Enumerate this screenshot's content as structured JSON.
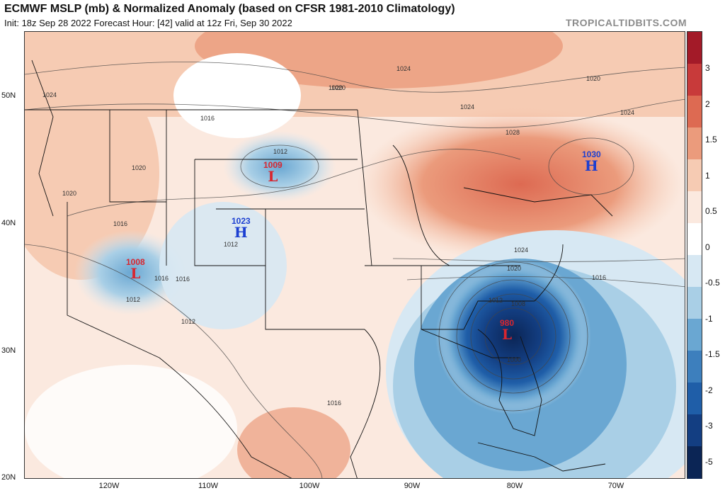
{
  "header": {
    "title": "ECMWF MSLP (mb) & Normalized Anomaly (based on CFSR 1981-2010 Climatology)",
    "subtitle": "Init: 18z Sep 28 2022   Forecast Hour: [42]   valid at 12z Fri, Sep 30 2022",
    "brand": "TROPICALTIDBITS.COM"
  },
  "map": {
    "lat_labels": [
      "50N",
      "40N",
      "30N",
      "20N"
    ],
    "lon_labels": [
      "120W",
      "110W",
      "100W",
      "90W",
      "80W",
      "70W"
    ],
    "colorbar_labels": [
      "3",
      "2",
      "1.5",
      "1",
      "0.5",
      "0",
      "-0.5",
      "-1",
      "-1.5",
      "-2",
      "-3",
      "-5"
    ],
    "colorbar_colors": [
      "#a31a28",
      "#c83a3a",
      "#dd6a52",
      "#eb9b7c",
      "#f6cbb3",
      "#fbe9df",
      "#ffffff",
      "#d7e8f3",
      "#a9cfe6",
      "#6aa7d2",
      "#3d7fbd",
      "#1f5ea8",
      "#133e82",
      "#0b2555"
    ],
    "systems": [
      {
        "type": "L",
        "value": "1009",
        "color": "red"
      },
      {
        "type": "H",
        "value": "1023",
        "color": "blue"
      },
      {
        "type": "L",
        "value": "1008",
        "color": "red"
      },
      {
        "type": "H",
        "value": "1030",
        "color": "blue"
      },
      {
        "type": "L",
        "value": "980",
        "color": "red"
      }
    ],
    "isobar_labels": [
      "1024",
      "1020",
      "1024",
      "1020",
      "1016",
      "1020",
      "1012",
      "1024",
      "1028",
      "1024",
      "1020",
      "1016",
      "1012",
      "1012",
      "1016",
      "1012",
      "1016",
      "1024",
      "1020",
      "1016",
      "1012",
      "1008",
      "1000",
      "1016",
      "1020"
    ]
  }
}
